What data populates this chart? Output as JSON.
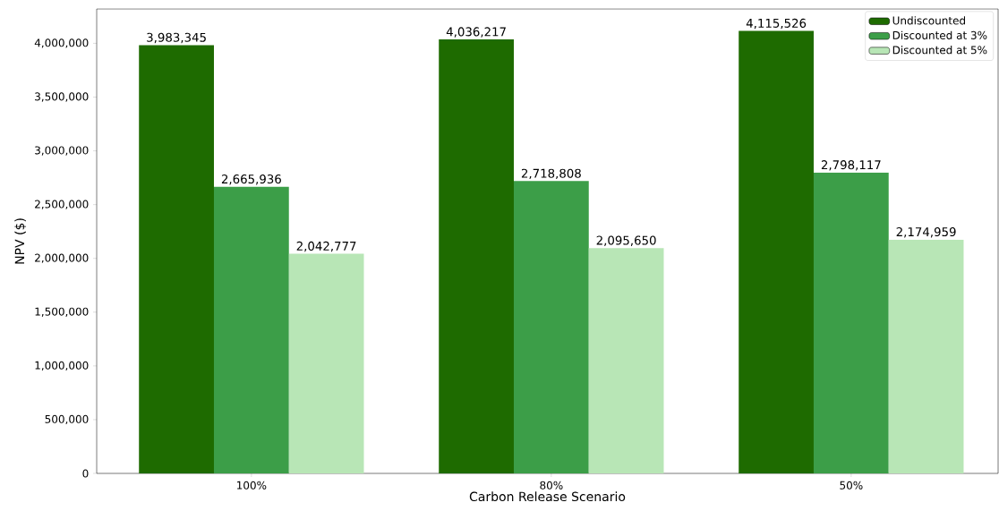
{
  "chart_data": {
    "type": "bar",
    "xlabel": "Carbon Release Scenario",
    "ylabel": "NPV ($)",
    "categories": [
      "100%",
      "80%",
      "50%"
    ],
    "series": [
      {
        "name": "Undiscounted",
        "color": "#1e6b00",
        "values": [
          3983345,
          4036217,
          4115526
        ],
        "value_labels": [
          "3,983,345",
          "4,036,217",
          "4,115,526"
        ]
      },
      {
        "name": "Discounted at 3%",
        "color": "#3c9e48",
        "values": [
          2665936,
          2718808,
          2798117
        ],
        "value_labels": [
          "2,665,936",
          "2,718,808",
          "2,798,117"
        ]
      },
      {
        "name": "Discounted at 5%",
        "color": "#b8e6b6",
        "values": [
          2042777,
          2095650,
          2174959
        ],
        "value_labels": [
          "2,042,777",
          "2,095,650",
          "2,174,959"
        ]
      }
    ],
    "ylim": [
      0,
      4320000
    ],
    "yticks": [
      0,
      {
        "value": 500000,
        "label": "500,000"
      },
      {
        "value": 1000000,
        "label": "1,000,000"
      },
      {
        "value": 1500000,
        "label": "1,500,000"
      },
      {
        "value": 2000000,
        "label": "2,000,000"
      },
      {
        "value": 2500000,
        "label": "2,500,000"
      },
      {
        "value": 3000000,
        "label": "3,000,000"
      },
      {
        "value": 3500000,
        "label": "3,500,000"
      },
      {
        "value": 4000000,
        "label": "4,000,000"
      }
    ],
    "legend": "top right",
    "grid": false
  }
}
